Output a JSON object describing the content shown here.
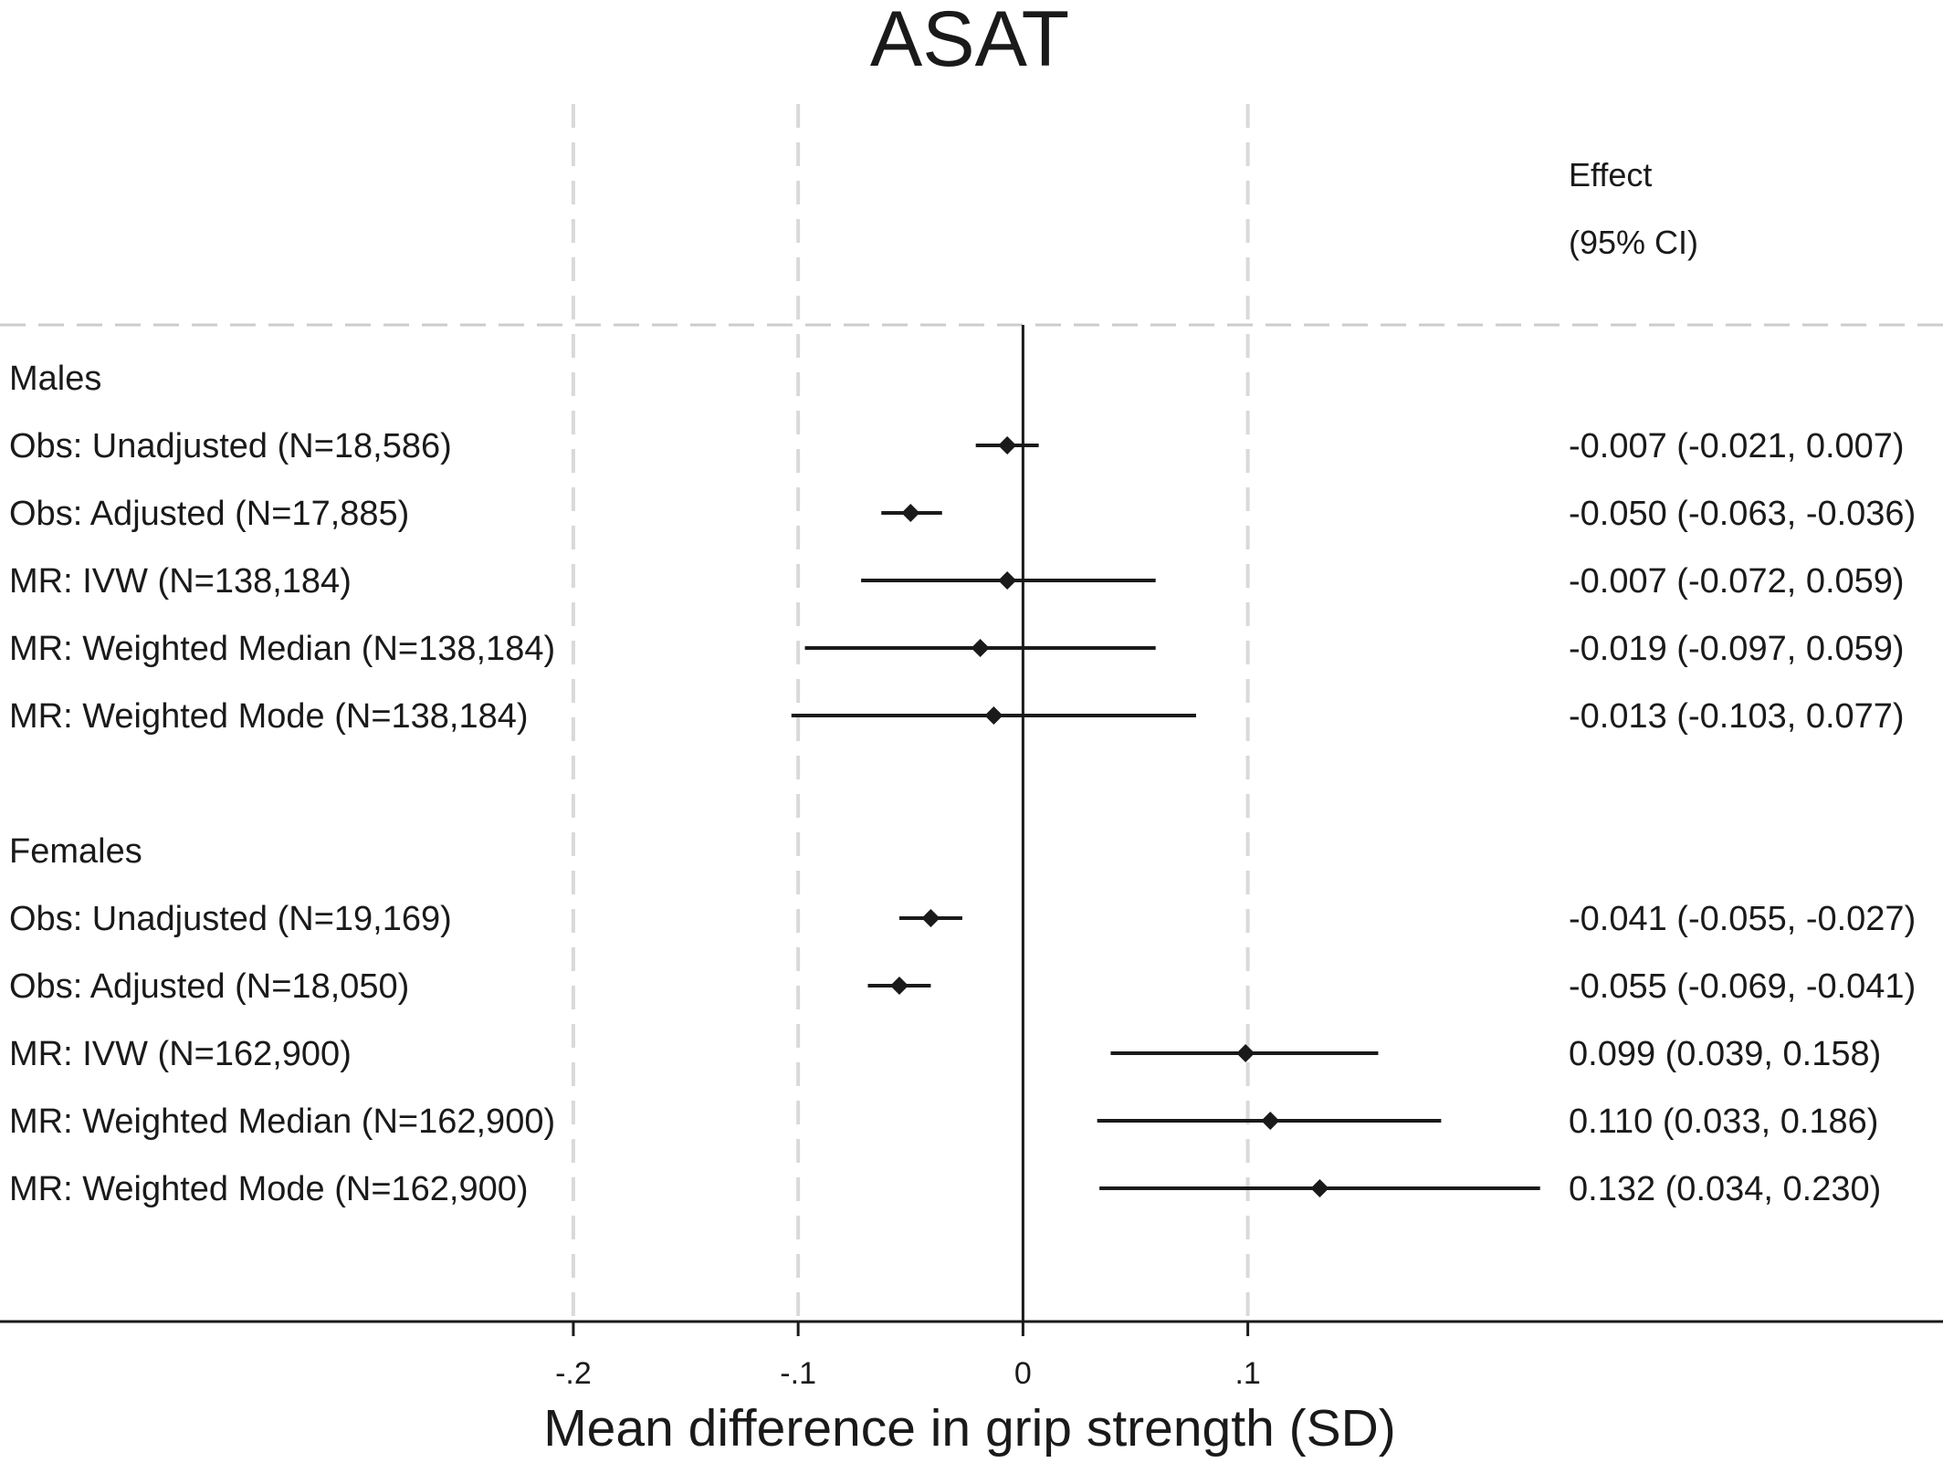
{
  "chart_data": {
    "type": "forest",
    "title": "ASAT",
    "xlabel": "Mean difference in grip strength (SD)",
    "effect_header": [
      "Effect",
      "(95% CI)"
    ],
    "x_ticks": [
      {
        "value": -0.2,
        "label": "-.2"
      },
      {
        "value": -0.1,
        "label": "-.1"
      },
      {
        "value": 0,
        "label": "0"
      },
      {
        "value": 0.1,
        "label": ".1"
      }
    ],
    "xlim": [
      -0.455,
      0.4092
    ],
    "vertical_gridlines": [
      -0.2,
      -0.1,
      0.1
    ],
    "reference_line": 0,
    "groups": [
      {
        "name": "Males",
        "rows": [
          {
            "label": "Obs: Unadjusted (N=18,586)",
            "estimate": -0.007,
            "lower": -0.021,
            "upper": 0.007,
            "effect_text": "-0.007 (-0.021, 0.007)"
          },
          {
            "label": "Obs: Adjusted (N=17,885)",
            "estimate": -0.05,
            "lower": -0.063,
            "upper": -0.036,
            "effect_text": "-0.050 (-0.063, -0.036)"
          },
          {
            "label": "MR: IVW (N=138,184)",
            "estimate": -0.007,
            "lower": -0.072,
            "upper": 0.059,
            "effect_text": "-0.007 (-0.072, 0.059)"
          },
          {
            "label": "MR: Weighted Median (N=138,184)",
            "estimate": -0.019,
            "lower": -0.097,
            "upper": 0.059,
            "effect_text": "-0.019 (-0.097, 0.059)"
          },
          {
            "label": "MR: Weighted Mode (N=138,184)",
            "estimate": -0.013,
            "lower": -0.103,
            "upper": 0.077,
            "effect_text": "-0.013 (-0.103, 0.077)"
          }
        ]
      },
      {
        "name": "Females",
        "rows": [
          {
            "label": "Obs: Unadjusted (N=19,169)",
            "estimate": -0.041,
            "lower": -0.055,
            "upper": -0.027,
            "effect_text": "-0.041 (-0.055, -0.027)"
          },
          {
            "label": "Obs: Adjusted (N=18,050)",
            "estimate": -0.055,
            "lower": -0.069,
            "upper": -0.041,
            "effect_text": "-0.055 (-0.069, -0.041)"
          },
          {
            "label": "MR: IVW (N=162,900)",
            "estimate": 0.099,
            "lower": 0.039,
            "upper": 0.158,
            "effect_text": "0.099 (0.039, 0.158)"
          },
          {
            "label": "MR: Weighted Median (N=162,900)",
            "estimate": 0.11,
            "lower": 0.033,
            "upper": 0.186,
            "effect_text": "0.110 (0.033, 0.186)"
          },
          {
            "label": "MR: Weighted Mode (N=162,900)",
            "estimate": 0.132,
            "lower": 0.034,
            "upper": 0.23,
            "effect_text": "0.132 (0.034, 0.230)"
          }
        ]
      }
    ]
  }
}
